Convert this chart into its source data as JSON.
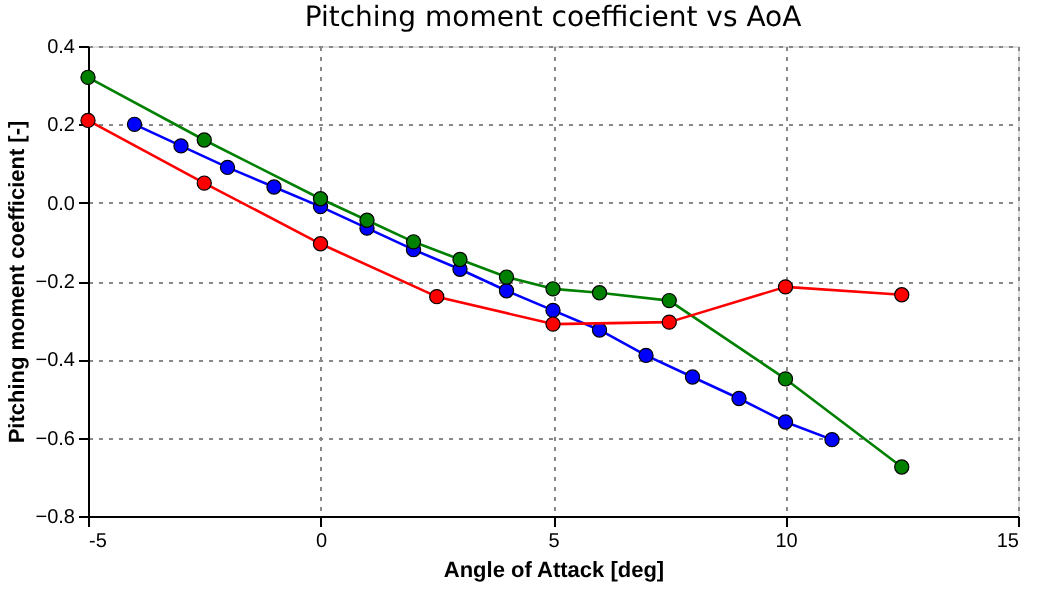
{
  "chart_data": {
    "type": "line",
    "title": "Pitching moment coefficient vs AoA",
    "xlabel": "Angle of Attack [deg]",
    "ylabel": "Pitching moment coefficient [-]",
    "xlim": [
      -5,
      15
    ],
    "xticks": [
      -5,
      0,
      5,
      10,
      15
    ],
    "ylim": [
      -0.8,
      0.4
    ],
    "yticks": [
      {
        "value": -0.8,
        "label": "−0.8"
      },
      {
        "value": -0.6,
        "label": "−0.6"
      },
      {
        "value": -0.4,
        "label": "−0.4"
      },
      {
        "value": -0.2,
        "label": "−0.2"
      },
      {
        "value": 0,
        "label": "0.0"
      },
      {
        "value": 0.2,
        "label": "0.2"
      },
      {
        "value": 0.4,
        "label": "0.4"
      }
    ],
    "grid": true,
    "marker": "circle",
    "line_style": "solid",
    "series": [
      {
        "color": "#0000ff",
        "x": [
          -4,
          -3,
          -2,
          -1,
          0,
          1,
          2,
          3,
          4,
          5,
          6,
          7,
          8,
          9,
          10,
          11
        ],
        "values": [
          0.2,
          0.145,
          0.09,
          0.04,
          -0.01,
          -0.065,
          -0.12,
          -0.17,
          -0.225,
          -0.275,
          -0.325,
          -0.39,
          -0.445,
          -0.5,
          -0.56,
          -0.605
        ]
      },
      {
        "color": "#008000",
        "x": [
          -5,
          -2.5,
          0,
          1,
          2,
          3,
          4,
          5,
          6,
          7.5,
          10,
          12.5
        ],
        "values": [
          0.32,
          0.16,
          0.01,
          -0.045,
          -0.1,
          -0.145,
          -0.19,
          -0.22,
          -0.23,
          -0.25,
          -0.45,
          -0.675
        ]
      },
      {
        "color": "#ff0000",
        "x": [
          -5,
          -2.5,
          0,
          2.5,
          5,
          7.5,
          10,
          12.5
        ],
        "values": [
          0.21,
          0.05,
          -0.105,
          -0.24,
          -0.31,
          -0.305,
          -0.215,
          -0.235
        ]
      }
    ]
  }
}
